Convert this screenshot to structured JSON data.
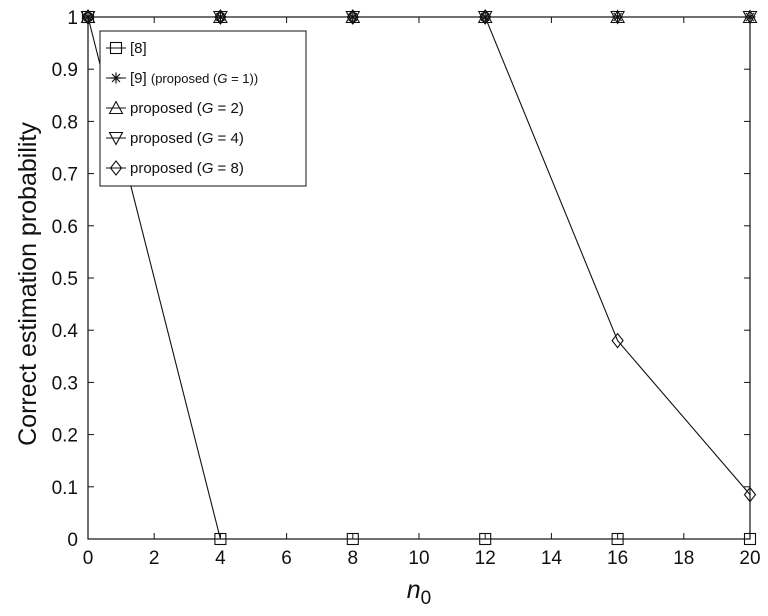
{
  "chart_data": {
    "type": "line",
    "title": "",
    "xlabel": "n",
    "xlabel_sub": "0",
    "ylabel": "Correct estimation probability",
    "xlim": [
      0,
      20
    ],
    "ylim": [
      0,
      1
    ],
    "xticks": [
      "0",
      "2",
      "4",
      "6",
      "8",
      "10",
      "12",
      "14",
      "16",
      "18",
      "20"
    ],
    "yticks": [
      "0",
      "0.1",
      "0.2",
      "0.3",
      "0.4",
      "0.5",
      "0.6",
      "0.7",
      "0.8",
      "0.9",
      "1"
    ],
    "grid": false,
    "legend_position": "top-left",
    "x": [
      0,
      4,
      8,
      12,
      16,
      20
    ],
    "series": [
      {
        "name": "[8]",
        "marker": "square",
        "values": [
          1,
          0,
          0,
          0,
          0,
          0
        ]
      },
      {
        "name": "[9] (proposed (G = 1))",
        "marker": "asterisk",
        "values": [
          1,
          1,
          1,
          1,
          1,
          1
        ]
      },
      {
        "name": "proposed (G = 2)",
        "marker": "triangle-up",
        "values": [
          1,
          1,
          1,
          1,
          1,
          1
        ]
      },
      {
        "name": "proposed (G = 4)",
        "marker": "triangle-down",
        "values": [
          1,
          1,
          1,
          1,
          1,
          1
        ]
      },
      {
        "name": "proposed (G = 8)",
        "marker": "diamond",
        "values": [
          1,
          1,
          1,
          1,
          0.38,
          0.085
        ]
      }
    ],
    "legend": [
      {
        "pre": "[8]",
        "var": "",
        "post": "",
        "small": false
      },
      {
        "pre": "[9] ",
        "small_text": "(proposed (",
        "var": "G",
        "post": " = 1))",
        "small": true
      },
      {
        "pre": "proposed (",
        "var": "G",
        "post": " = 2)",
        "small": false
      },
      {
        "pre": "proposed (",
        "var": "G",
        "post": " = 4)",
        "small": false
      },
      {
        "pre": "proposed (",
        "var": "G",
        "post": " = 8)",
        "small": false
      }
    ]
  }
}
